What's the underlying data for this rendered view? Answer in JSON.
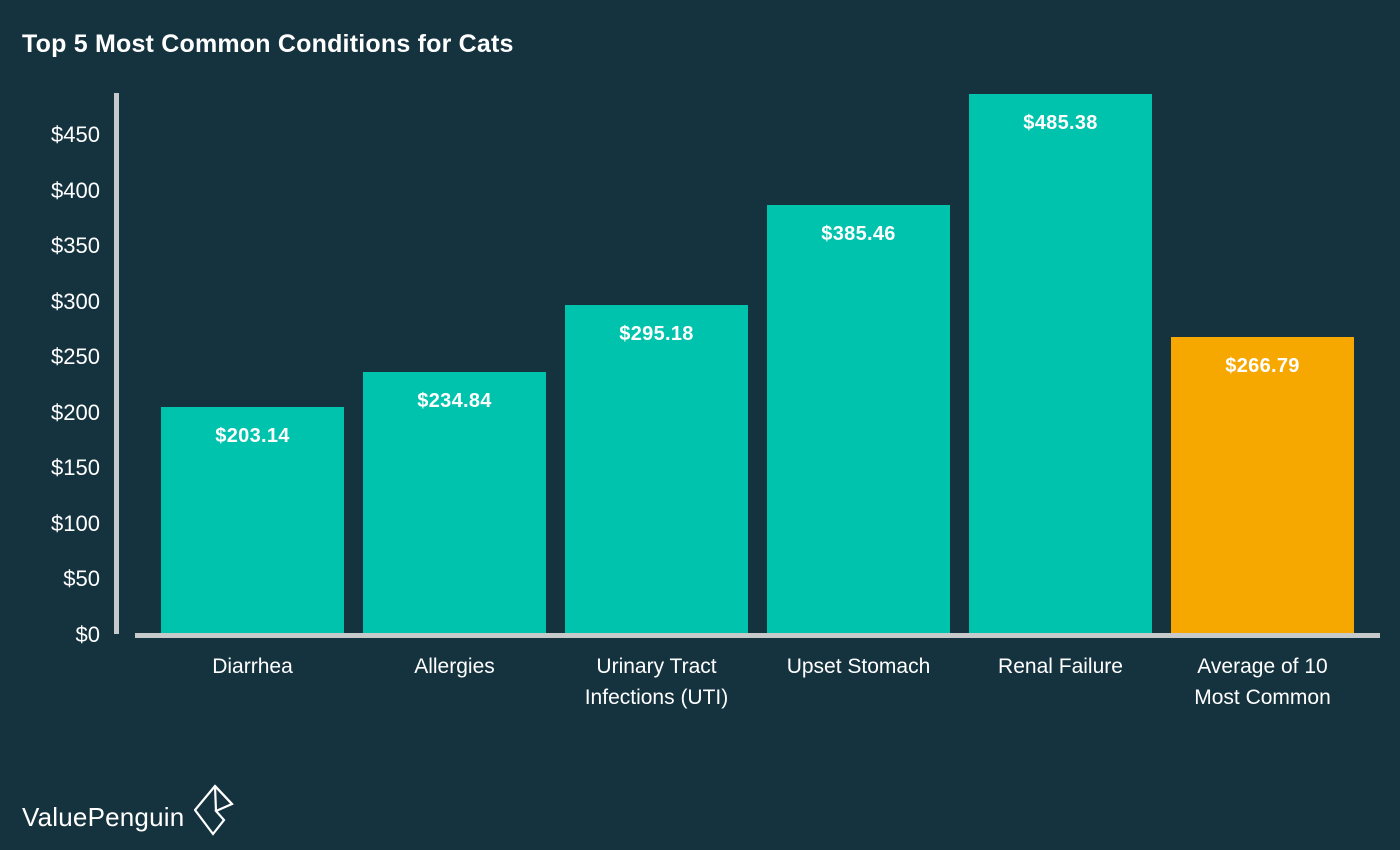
{
  "title": "Top 5 Most Common Conditions for Cats",
  "colors": {
    "background": "#15333f",
    "bar_teal": "#00c3ad",
    "bar_orange": "#f7a800",
    "axis_gray": "#c6caca",
    "text_white": "#ffffff"
  },
  "chart_data": {
    "type": "bar",
    "title": "Top 5 Most Common Conditions for Cats",
    "categories": [
      "Diarrhea",
      "Allergies",
      "Urinary Tract Infections (UTI)",
      "Upset Stomach",
      "Renal Failure",
      "Average of 10 Most Common"
    ],
    "category_display": [
      "Diarrhea",
      "Allergies",
      "Urinary Tract\nInfections (UTI)",
      "Upset Stomach",
      "Renal Failure",
      "Average of 10\nMost Common"
    ],
    "values": [
      203.14,
      234.84,
      295.18,
      385.46,
      485.38,
      266.79
    ],
    "value_labels": [
      "$203.14",
      "$234.84",
      "$295.18",
      "$385.46",
      "$485.38",
      "$266.79"
    ],
    "bar_color_keys": [
      "bar_teal",
      "bar_teal",
      "bar_teal",
      "bar_teal",
      "bar_teal",
      "bar_orange"
    ],
    "xlabel": "",
    "ylabel": "",
    "ylim": [
      0,
      486
    ],
    "ytick_values": [
      0,
      50,
      100,
      150,
      200,
      250,
      300,
      350,
      400,
      450
    ],
    "ytick_labels": [
      "$0",
      "$50",
      "$100",
      "$150",
      "$200",
      "$250",
      "$300",
      "$350",
      "$400",
      "$450"
    ],
    "grid": false,
    "legend_position": "none",
    "value_label_position": "inside-top"
  },
  "footer": {
    "brand": "ValuePenguin",
    "brand_icon": "origami-penguin-icon"
  }
}
